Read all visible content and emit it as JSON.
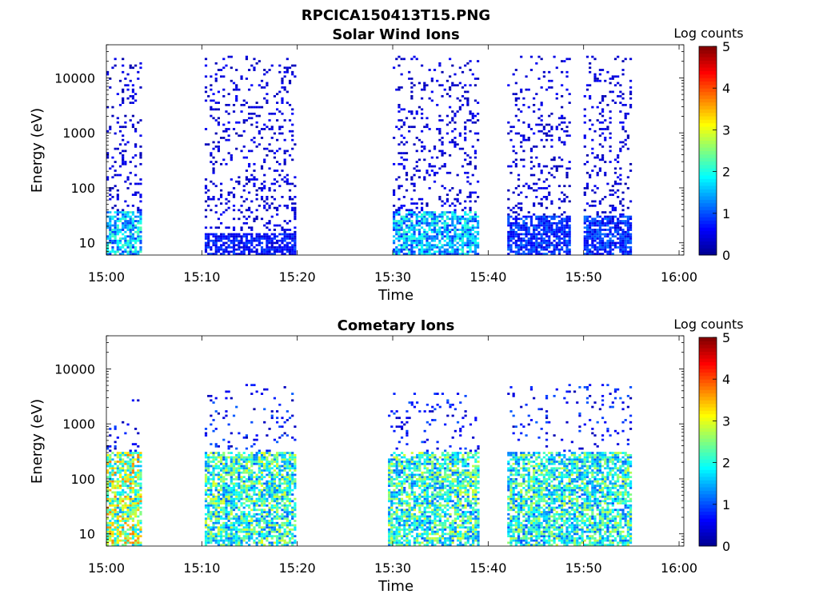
{
  "figure_title": "RPCICA150413T15.PNG",
  "colormap": [
    "#00008f",
    "#0000ff",
    "#0080ff",
    "#00ffff",
    "#80ff80",
    "#ffff00",
    "#ff8000",
    "#ff0000",
    "#800000"
  ],
  "chart_data": [
    {
      "type": "heatmap",
      "title": "Solar Wind Ions",
      "xlabel": "Time",
      "ylabel": "Energy (eV)",
      "yscale": "log",
      "x_ticks": [
        "15:00",
        "15:10",
        "15:20",
        "15:30",
        "15:40",
        "15:50",
        "16:00"
      ],
      "y_ticks": [
        "10",
        "100",
        "1000",
        "10000"
      ],
      "x_range_minutes": [
        0,
        60.5
      ],
      "y_range_ev": [
        6,
        40000
      ],
      "colorbar": {
        "label": "Log counts",
        "range": [
          0,
          5
        ],
        "ticks": [
          "0",
          "1",
          "2",
          "3",
          "4",
          "5"
        ]
      },
      "bursts": [
        {
          "t_start_min": 0.0,
          "t_end_min": 3.7,
          "max_energy_ev": 25000,
          "peak_log_counts": 2.3,
          "low_band_ev": [
            6,
            35
          ]
        },
        {
          "t_start_min": 10.3,
          "t_end_min": 19.7,
          "max_energy_ev": 25000,
          "peak_log_counts": 1.0,
          "low_band_ev": [
            6,
            15
          ]
        },
        {
          "t_start_min": 30.0,
          "t_end_min": 38.9,
          "max_energy_ev": 25000,
          "peak_log_counts": 2.2,
          "low_band_ev": [
            6,
            35
          ]
        },
        {
          "t_start_min": 42.0,
          "t_end_min": 48.6,
          "max_energy_ev": 25000,
          "peak_log_counts": 1.2,
          "low_band_ev": [
            6,
            30
          ]
        },
        {
          "t_start_min": 50.0,
          "t_end_min": 55.0,
          "max_energy_ev": 25000,
          "peak_log_counts": 1.2,
          "low_band_ev": [
            6,
            30
          ]
        }
      ]
    },
    {
      "type": "heatmap",
      "title": "Cometary Ions",
      "xlabel": "Time",
      "ylabel": "Energy (eV)",
      "yscale": "log",
      "x_ticks": [
        "15:00",
        "15:10",
        "15:20",
        "15:30",
        "15:40",
        "15:50",
        "16:00"
      ],
      "y_ticks": [
        "10",
        "100",
        "1000",
        "10000"
      ],
      "x_range_minutes": [
        0,
        60.5
      ],
      "y_range_ev": [
        6,
        40000
      ],
      "colorbar": {
        "label": "Log counts",
        "range": [
          0,
          5
        ],
        "ticks": [
          "0",
          "1",
          "2",
          "3",
          "4",
          "5"
        ]
      },
      "bursts": [
        {
          "t_start_min": 0.0,
          "t_end_min": 3.7,
          "max_energy_ev": 3000,
          "peak_log_counts": 3.8,
          "low_band_ev": [
            6,
            300
          ]
        },
        {
          "t_start_min": 10.3,
          "t_end_min": 19.7,
          "max_energy_ev": 5000,
          "peak_log_counts": 3.0,
          "low_band_ev": [
            6,
            300
          ]
        },
        {
          "t_start_min": 29.5,
          "t_end_min": 39.0,
          "max_energy_ev": 3500,
          "peak_log_counts": 3.0,
          "low_band_ev": [
            6,
            300
          ]
        },
        {
          "t_start_min": 42.0,
          "t_end_min": 55.0,
          "max_energy_ev": 5000,
          "peak_log_counts": 2.9,
          "low_band_ev": [
            6,
            300
          ]
        }
      ]
    }
  ]
}
